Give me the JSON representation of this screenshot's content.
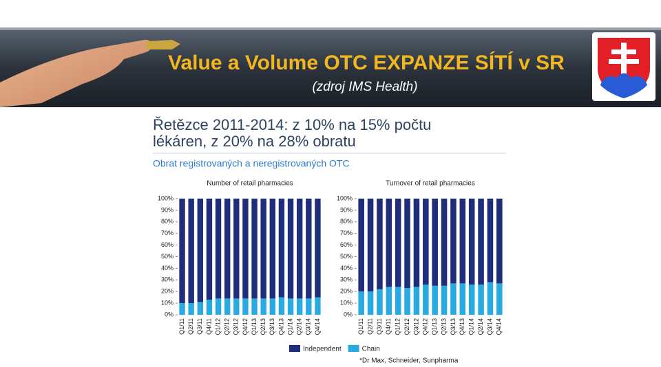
{
  "slide_title": "Value a Volume OTC EXPANZE SÍTÍ v SR",
  "slide_subtitle": "(zdroj IMS Health)",
  "heading": [
    "Řetězce 2011-2014: z 10% na 15% počtu",
    "lékáren, z 20% na 28% obratu"
  ],
  "subheading": "Obrat registrovaných a neregistrovaných OTC",
  "footnote": "*Dr Max, Schneider, Sunpharma",
  "chart_data": [
    {
      "type": "stacked_bar",
      "title": "Number of retail pharmacies",
      "categories": [
        "Q1/11",
        "Q2/11",
        "Q3/11",
        "Q4/11",
        "Q1/12",
        "Q2/12",
        "Q3/12",
        "Q4/12",
        "Q1/13",
        "Q2/13",
        "Q3/13",
        "Q4/13",
        "Q1/14",
        "Q2/14",
        "Q3/14",
        "Q4/14"
      ],
      "series": [
        {
          "name": "Chain",
          "color": "#29abe2",
          "values": [
            10,
            10,
            11,
            13,
            14,
            14,
            14,
            14,
            14,
            14,
            14,
            15,
            14,
            14,
            14,
            15
          ]
        },
        {
          "name": "Independent",
          "color": "#1f2d7a",
          "values": [
            90,
            90,
            89,
            87,
            86,
            86,
            86,
            86,
            86,
            86,
            86,
            85,
            86,
            86,
            86,
            85
          ]
        }
      ],
      "ylim": [
        0,
        100
      ],
      "yticks": [
        {
          "value": 0,
          "label": "0%"
        },
        {
          "value": 10,
          "label": "10%"
        },
        {
          "value": 20,
          "label": "20%"
        },
        {
          "value": 30,
          "label": "30%"
        },
        {
          "value": 40,
          "label": "40%"
        },
        {
          "value": 50,
          "label": "50%"
        },
        {
          "value": 60,
          "label": "60%"
        },
        {
          "value": 70,
          "label": "70%"
        },
        {
          "value": 80,
          "label": "80%"
        },
        {
          "value": 90,
          "label": "90%"
        },
        {
          "value": 100,
          "label": "100%"
        }
      ]
    },
    {
      "type": "stacked_bar",
      "title": "Turnover of retail pharmacies",
      "categories": [
        "Q1/11",
        "Q2/11",
        "Q3/11",
        "Q4/11",
        "Q1/12",
        "Q2/12",
        "Q3/12",
        "Q4/12",
        "Q1/13",
        "Q2/13",
        "Q3/13",
        "Q4/13",
        "Q1/14",
        "Q2/14",
        "Q3/14",
        "Q4/14"
      ],
      "series": [
        {
          "name": "Chain",
          "color": "#29abe2",
          "values": [
            20,
            20,
            22,
            24,
            24,
            23,
            24,
            26,
            25,
            25,
            27,
            27,
            26,
            26,
            28,
            27
          ]
        },
        {
          "name": "Independent",
          "color": "#1f2d7a",
          "values": [
            80,
            80,
            78,
            76,
            76,
            77,
            76,
            74,
            75,
            75,
            73,
            73,
            74,
            74,
            72,
            73
          ]
        }
      ],
      "ylim": [
        0,
        100
      ],
      "yticks": [
        {
          "value": 0,
          "label": "0%"
        },
        {
          "value": 10,
          "label": "10%"
        },
        {
          "value": 20,
          "label": "20%"
        },
        {
          "value": 30,
          "label": "30%"
        },
        {
          "value": 40,
          "label": "40%"
        },
        {
          "value": 50,
          "label": "50%"
        },
        {
          "value": 60,
          "label": "60%"
        },
        {
          "value": 70,
          "label": "70%"
        },
        {
          "value": 80,
          "label": "80%"
        },
        {
          "value": 90,
          "label": "90%"
        },
        {
          "value": 100,
          "label": "100%"
        }
      ]
    }
  ]
}
